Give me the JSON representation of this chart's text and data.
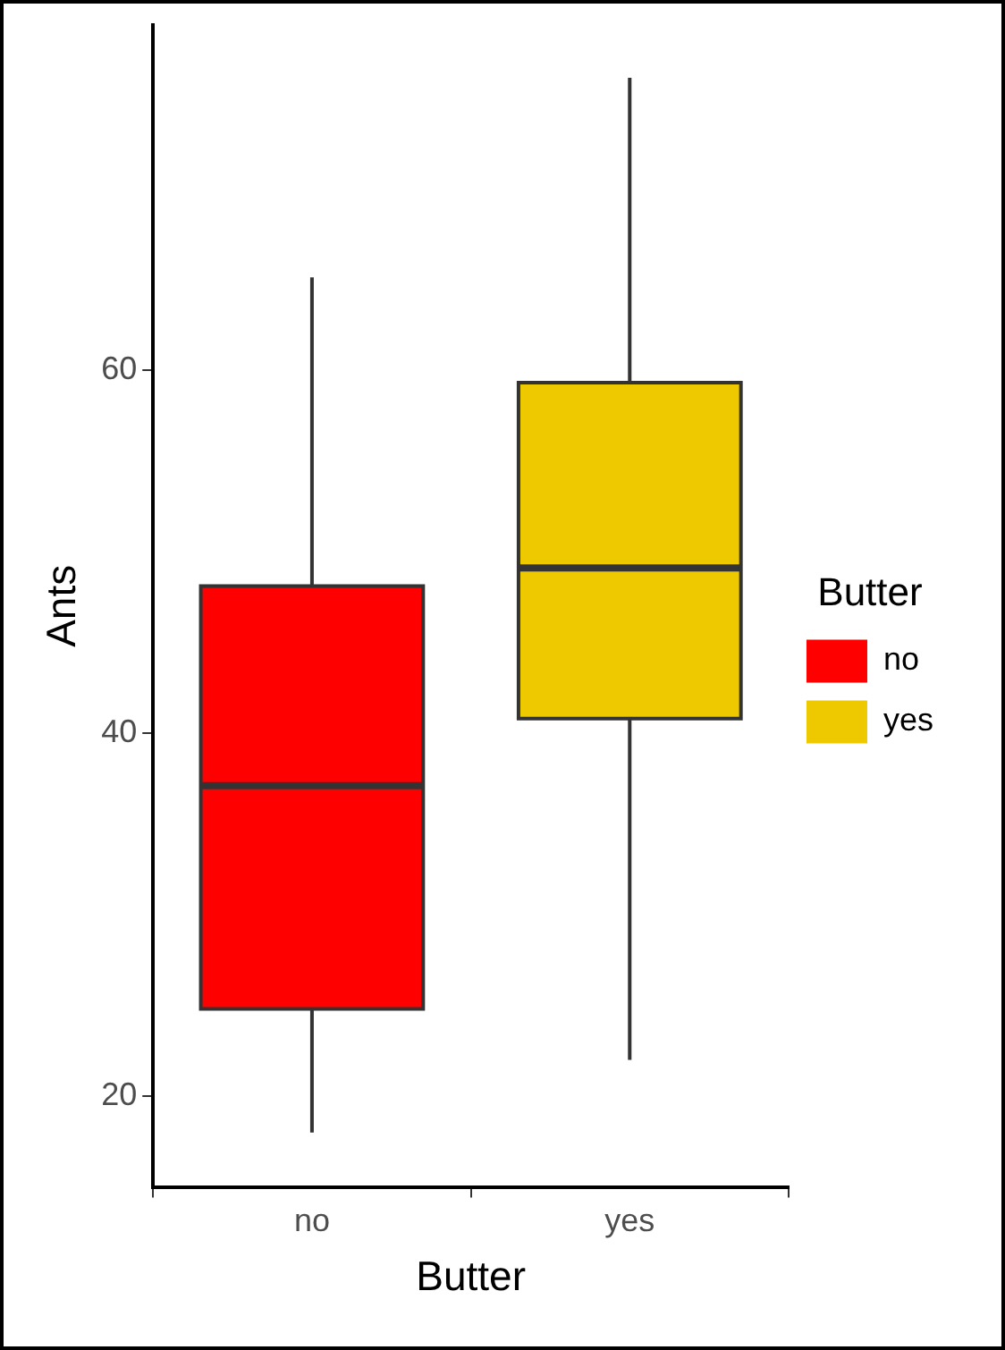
{
  "chart_data": {
    "type": "box",
    "xlabel": "Butter",
    "ylabel": "Ants",
    "legend_title": "Butter",
    "legend": "right",
    "grid": false,
    "categories": [
      "no",
      "yes"
    ],
    "series": [
      {
        "name": "no",
        "color": "#ff0000",
        "boxes": [
          {
            "low": 18,
            "q1": 24.8,
            "median": 37.1,
            "q3": 48.1,
            "high": 65.1
          },
          null
        ]
      },
      {
        "name": "yes",
        "color": "#eec900",
        "boxes": [
          null,
          {
            "low": 22,
            "q1": 40.8,
            "median": 49.1,
            "q3": 59.3,
            "high": 76.1
          }
        ]
      }
    ],
    "ylim": [
      15,
      79
    ],
    "yticks": [
      20,
      40,
      60
    ]
  }
}
